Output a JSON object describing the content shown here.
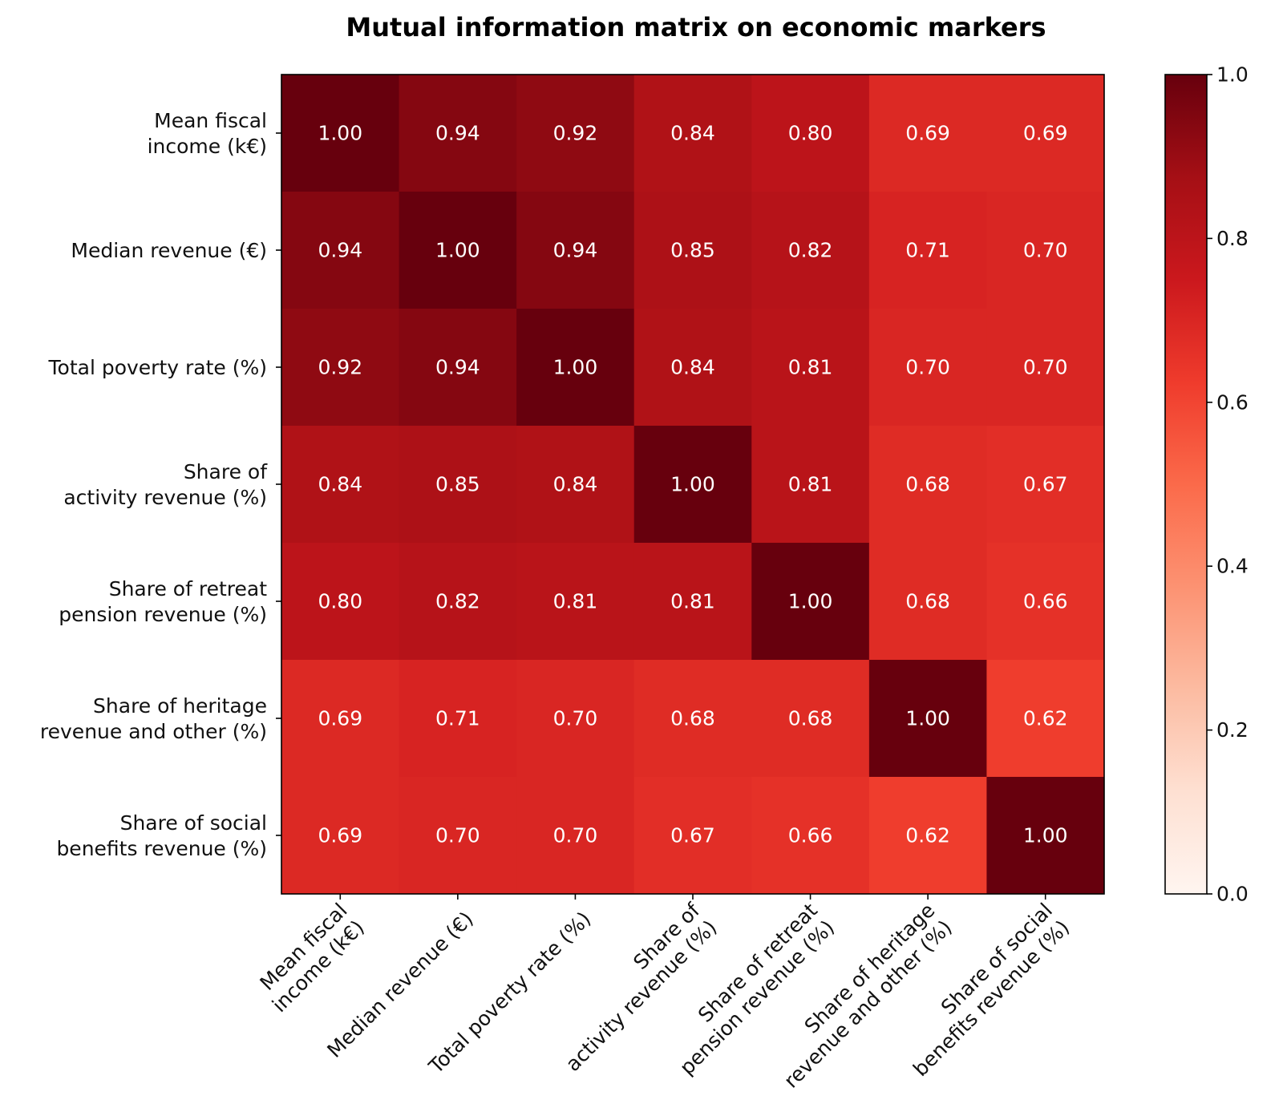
{
  "chart_data": {
    "type": "heatmap",
    "title": "Mutual information matrix on economic markers",
    "row_labels": [
      [
        "Mean fiscal",
        "income (k€)"
      ],
      [
        "Median revenue (€)"
      ],
      [
        "Total poverty rate (%)"
      ],
      [
        "Share of",
        "activity revenue (%)"
      ],
      [
        "Share of retreat",
        "pension revenue (%)"
      ],
      [
        "Share of heritage",
        "revenue and other (%)"
      ],
      [
        "Share of social",
        "benefits revenue (%)"
      ]
    ],
    "col_labels": [
      [
        "Mean fiscal",
        "income (k€)"
      ],
      [
        "Median revenue (€)"
      ],
      [
        "Total poverty rate (%)"
      ],
      [
        "Share of",
        "activity revenue (%)"
      ],
      [
        "Share of retreat",
        "pension revenue (%)"
      ],
      [
        "Share of heritage",
        "revenue and other (%)"
      ],
      [
        "Share of social",
        "benefits revenue (%)"
      ]
    ],
    "matrix": [
      [
        1.0,
        0.94,
        0.92,
        0.84,
        0.8,
        0.69,
        0.69
      ],
      [
        0.94,
        1.0,
        0.94,
        0.85,
        0.82,
        0.71,
        0.7
      ],
      [
        0.92,
        0.94,
        1.0,
        0.84,
        0.81,
        0.7,
        0.7
      ],
      [
        0.84,
        0.85,
        0.84,
        1.0,
        0.81,
        0.68,
        0.67
      ],
      [
        0.8,
        0.82,
        0.81,
        0.81,
        1.0,
        0.68,
        0.66
      ],
      [
        0.69,
        0.71,
        0.7,
        0.68,
        0.68,
        1.0,
        0.62
      ],
      [
        0.69,
        0.7,
        0.7,
        0.67,
        0.66,
        0.62,
        1.0
      ]
    ],
    "value_format_decimals": 2,
    "colormap": "Reds",
    "colormap_stops": [
      "#fff5f0",
      "#fee0d2",
      "#fcbba1",
      "#fc9272",
      "#fb6a4a",
      "#ef3b2c",
      "#cb181d",
      "#a50f15",
      "#67000d"
    ],
    "vmin": 0.0,
    "vmax": 1.0,
    "colorbar_ticks": [
      0.0,
      0.2,
      0.4,
      0.6,
      0.8,
      1.0
    ],
    "colorbar_tick_labels": [
      "0.0",
      "0.2",
      "0.4",
      "0.6",
      "0.8",
      "1.0"
    ],
    "cell_text_color": "#ffffff",
    "grid": false
  }
}
